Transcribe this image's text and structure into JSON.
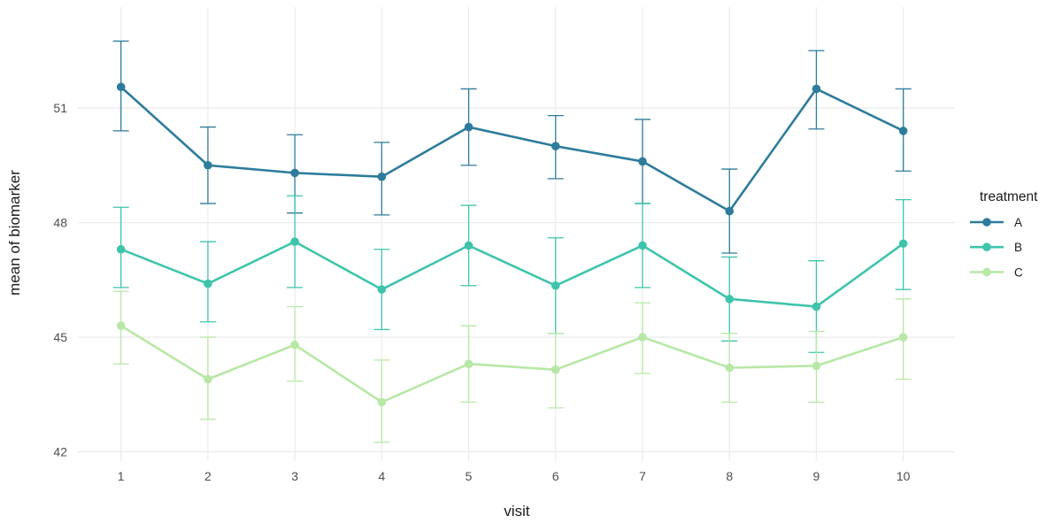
{
  "chart_data": {
    "type": "line",
    "title": "",
    "xlabel": "visit",
    "ylabel": "mean of biomarker",
    "legend_title": "treatment",
    "legend_position": "right",
    "grid": true,
    "background": "#ffffff",
    "gridline_color": "#ebebeb",
    "tick_label_color": "#4d4d4d",
    "axis_title_color": "#1a1a1a",
    "x": [
      1,
      2,
      3,
      4,
      5,
      6,
      7,
      8,
      9,
      10
    ],
    "xticks": [
      "1",
      "2",
      "3",
      "4",
      "5",
      "6",
      "7",
      "8",
      "9",
      "10"
    ],
    "yticks": [
      "42",
      "45",
      "48",
      "51"
    ],
    "ytick_values": [
      42,
      45,
      48,
      51
    ],
    "ylim": [
      41.75,
      53.6
    ],
    "series": [
      {
        "name": "A",
        "color": "#2d7c9b",
        "values": [
          51.55,
          49.5,
          49.3,
          49.2,
          50.5,
          50.0,
          49.6,
          48.3,
          51.5,
          50.4
        ],
        "lower": [
          50.4,
          48.5,
          48.25,
          48.2,
          49.5,
          49.15,
          48.5,
          47.2,
          50.45,
          49.35
        ],
        "upper": [
          52.75,
          50.5,
          50.3,
          50.1,
          51.5,
          50.8,
          50.7,
          49.4,
          52.5,
          51.5
        ]
      },
      {
        "name": "B",
        "color": "#3fc4ac",
        "values": [
          47.3,
          46.4,
          47.5,
          46.25,
          47.4,
          46.35,
          47.4,
          46.0,
          45.8,
          47.45
        ],
        "lower": [
          46.3,
          45.4,
          46.3,
          45.2,
          46.35,
          45.1,
          46.3,
          44.9,
          44.6,
          46.25
        ],
        "upper": [
          48.4,
          47.5,
          48.7,
          47.3,
          48.45,
          47.6,
          48.5,
          47.1,
          47.0,
          48.6
        ]
      },
      {
        "name": "C",
        "color": "#b7e8a6",
        "values": [
          45.3,
          43.9,
          44.8,
          43.3,
          44.3,
          44.15,
          45.0,
          44.2,
          44.25,
          45.0
        ],
        "lower": [
          44.3,
          42.85,
          43.85,
          42.25,
          43.3,
          43.15,
          44.05,
          43.3,
          43.3,
          43.9
        ],
        "upper": [
          46.2,
          45.0,
          45.8,
          44.4,
          45.3,
          45.1,
          45.9,
          45.1,
          45.15,
          46.0
        ]
      }
    ]
  }
}
